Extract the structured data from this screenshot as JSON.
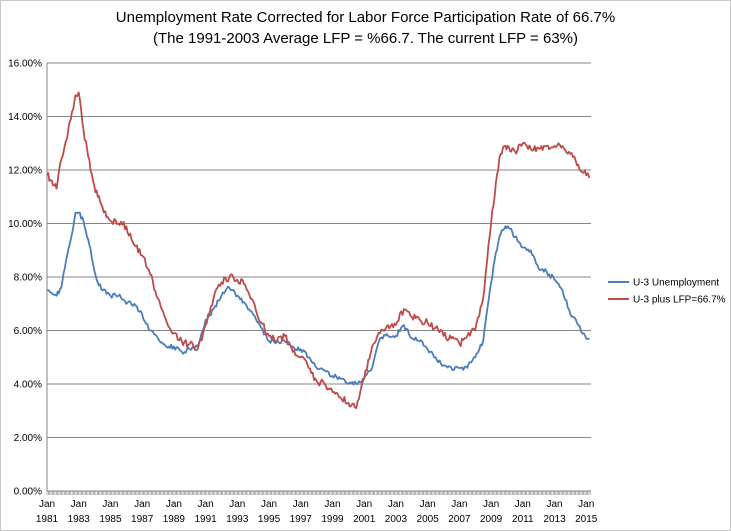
{
  "chart_data": {
    "type": "line",
    "title": "Unemployment Rate Corrected for Labor Force Participation  Rate of 66.7%",
    "subtitle": "(The 1991-2003 Average LFP = %66.7. The current LFP = 63%)",
    "xlabel": "",
    "ylabel": "",
    "xlim": [
      1981.0,
      2015.3
    ],
    "ylim": [
      0,
      16
    ],
    "grid": true,
    "legend_position": "right",
    "y_ticks": [
      0,
      2,
      4,
      6,
      8,
      10,
      12,
      14,
      16
    ],
    "y_tick_labels": [
      "0.00%",
      "2.00%",
      "4.00%",
      "6.00%",
      "8.00%",
      "10.00%",
      "12.00%",
      "14.00%",
      "16.00%"
    ],
    "x_ticks": [
      1981,
      1983,
      1985,
      1987,
      1989,
      1991,
      1993,
      1995,
      1997,
      1999,
      2001,
      2003,
      2005,
      2007,
      2009,
      2011,
      2013,
      2015
    ],
    "x_tick_month": "Jan",
    "x_tick_years": [
      "1981",
      "1983",
      "1985",
      "1987",
      "1989",
      "1991",
      "1993",
      "1995",
      "1997",
      "1999",
      "2001",
      "2003",
      "2005",
      "2007",
      "2009",
      "2011",
      "2013",
      "2015"
    ],
    "series": [
      {
        "name": "U-3 Unemployment",
        "color": "#4a7ebb",
        "x": [
          1981.0,
          1981.3,
          1981.6,
          1981.9,
          1982.2,
          1982.5,
          1982.8,
          1983.0,
          1983.3,
          1983.6,
          1983.9,
          1984.2,
          1984.5,
          1985.0,
          1985.5,
          1986.0,
          1986.5,
          1987.0,
          1987.5,
          1988.0,
          1988.5,
          1989.0,
          1989.5,
          1990.0,
          1990.5,
          1991.0,
          1991.5,
          1992.0,
          1992.5,
          1993.0,
          1993.5,
          1994.0,
          1994.5,
          1995.0,
          1995.5,
          1996.0,
          1996.5,
          1997.0,
          1997.5,
          1998.0,
          1998.5,
          1999.0,
          1999.5,
          2000.0,
          2000.5,
          2001.0,
          2001.5,
          2002.0,
          2002.5,
          2003.0,
          2003.5,
          2004.0,
          2004.5,
          2005.0,
          2005.5,
          2006.0,
          2006.5,
          2007.0,
          2007.5,
          2008.0,
          2008.5,
          2009.0,
          2009.3,
          2009.6,
          2009.9,
          2010.2,
          2010.5,
          2011.0,
          2011.5,
          2012.0,
          2012.5,
          2013.0,
          2013.5,
          2014.0,
          2014.5,
          2015.0,
          2015.2
        ],
        "values": [
          7.5,
          7.4,
          7.3,
          7.6,
          8.6,
          9.4,
          10.4,
          10.4,
          10.1,
          9.4,
          8.5,
          7.8,
          7.5,
          7.3,
          7.3,
          7.0,
          7.0,
          6.6,
          6.0,
          5.7,
          5.4,
          5.4,
          5.2,
          5.3,
          5.4,
          6.4,
          6.8,
          7.3,
          7.6,
          7.3,
          7.0,
          6.6,
          6.1,
          5.6,
          5.6,
          5.6,
          5.4,
          5.3,
          5.0,
          4.6,
          4.5,
          4.3,
          4.2,
          4.0,
          4.0,
          4.2,
          4.6,
          5.7,
          5.8,
          5.8,
          6.2,
          5.7,
          5.6,
          5.3,
          5.0,
          4.7,
          4.6,
          4.6,
          4.6,
          5.0,
          5.6,
          7.8,
          8.9,
          9.6,
          9.9,
          9.8,
          9.5,
          9.1,
          9.0,
          8.3,
          8.2,
          7.9,
          7.5,
          6.6,
          6.2,
          5.7,
          5.7
        ]
      },
      {
        "name": "U-3 plus LFP=66.7%",
        "color": "#be4b48",
        "x": [
          1981.0,
          1981.3,
          1981.6,
          1981.9,
          1982.2,
          1982.5,
          1982.8,
          1983.0,
          1983.3,
          1983.6,
          1983.9,
          1984.2,
          1984.5,
          1985.0,
          1985.5,
          1986.0,
          1986.5,
          1987.0,
          1987.5,
          1988.0,
          1988.5,
          1989.0,
          1989.5,
          1990.0,
          1990.5,
          1991.0,
          1991.5,
          1992.0,
          1992.5,
          1993.0,
          1993.5,
          1994.0,
          1994.5,
          1995.0,
          1995.5,
          1996.0,
          1996.5,
          1997.0,
          1997.5,
          1998.0,
          1998.5,
          1999.0,
          1999.5,
          2000.0,
          2000.5,
          2001.0,
          2001.5,
          2002.0,
          2002.5,
          2003.0,
          2003.5,
          2004.0,
          2004.5,
          2005.0,
          2005.5,
          2006.0,
          2006.5,
          2007.0,
          2007.5,
          2008.0,
          2008.5,
          2009.0,
          2009.3,
          2009.6,
          2009.9,
          2010.2,
          2010.5,
          2011.0,
          2011.5,
          2012.0,
          2012.5,
          2013.0,
          2013.5,
          2014.0,
          2014.5,
          2015.0,
          2015.2
        ],
        "values": [
          11.8,
          11.6,
          11.3,
          12.4,
          13.1,
          13.9,
          14.8,
          14.9,
          13.5,
          12.5,
          11.6,
          11.0,
          10.6,
          10.1,
          10.0,
          9.9,
          9.2,
          8.8,
          8.1,
          7.2,
          6.4,
          5.9,
          5.6,
          5.5,
          5.3,
          6.2,
          7.2,
          7.8,
          8.0,
          7.9,
          7.7,
          7.1,
          6.3,
          5.8,
          5.6,
          5.8,
          5.2,
          5.0,
          4.6,
          4.1,
          4.0,
          3.7,
          3.5,
          3.3,
          3.1,
          4.2,
          5.4,
          5.9,
          6.2,
          6.2,
          6.8,
          6.5,
          6.4,
          6.3,
          6.1,
          5.8,
          5.7,
          5.5,
          5.8,
          6.0,
          7.2,
          10.0,
          11.5,
          12.6,
          12.9,
          12.7,
          12.7,
          13.0,
          12.8,
          12.8,
          12.9,
          12.9,
          12.9,
          12.6,
          12.2,
          11.8,
          11.7
        ]
      }
    ]
  }
}
